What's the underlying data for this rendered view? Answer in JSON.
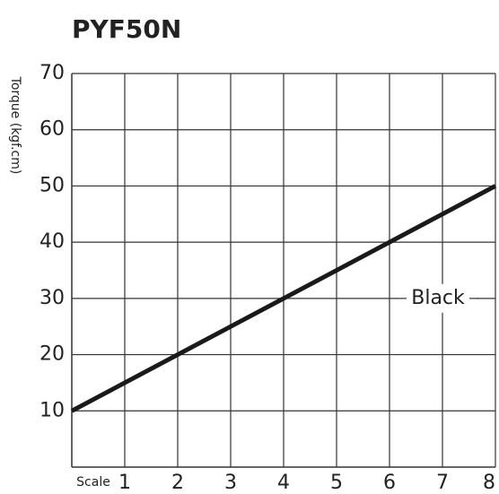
{
  "chart_data": {
    "type": "line",
    "title": "PYF50N",
    "y_label": "Torque (kgf.cm)",
    "x_label": "Scale",
    "x": [
      0,
      8
    ],
    "series": [
      {
        "name": "Black",
        "color": "#1a1a1a",
        "values": [
          10,
          50
        ]
      }
    ],
    "xlim": [
      0,
      8
    ],
    "xticks": [
      1,
      2,
      3,
      4,
      5,
      6,
      7,
      8
    ],
    "ylim": [
      0,
      70
    ],
    "yticks": [
      10,
      20,
      30,
      40,
      50,
      60,
      70
    ],
    "grid": true
  }
}
